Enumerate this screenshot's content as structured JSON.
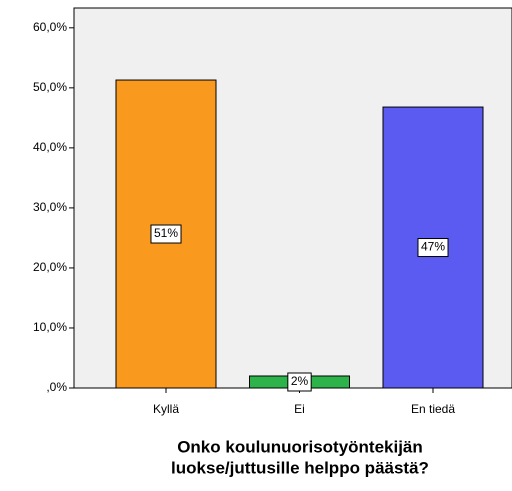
{
  "chart_data": {
    "type": "bar",
    "categories": [
      "Kyllä",
      "Ei",
      "En tiedä"
    ],
    "values": [
      51.3,
      2.0,
      46.8
    ],
    "value_labels": [
      "51%",
      "2%",
      "47%"
    ],
    "colors": [
      "#f99a1e",
      "#2db34a",
      "#5b5bf2"
    ],
    "xlabel": [
      "Onko koulunuorisotyöntekijän",
      "luokse/juttusille helppo päästä?"
    ],
    "ylim": [
      0,
      63.3
    ],
    "yticks": [
      {
        "value": 0,
        "label": ",0%"
      },
      {
        "value": 10,
        "label": "10,0%"
      },
      {
        "value": 20,
        "label": "20,0%"
      },
      {
        "value": 30,
        "label": "30,0%"
      },
      {
        "value": 40,
        "label": "40,0%"
      },
      {
        "value": 50,
        "label": "50,0%"
      },
      {
        "value": 60,
        "label": "60,0%"
      }
    ],
    "grid": false
  }
}
